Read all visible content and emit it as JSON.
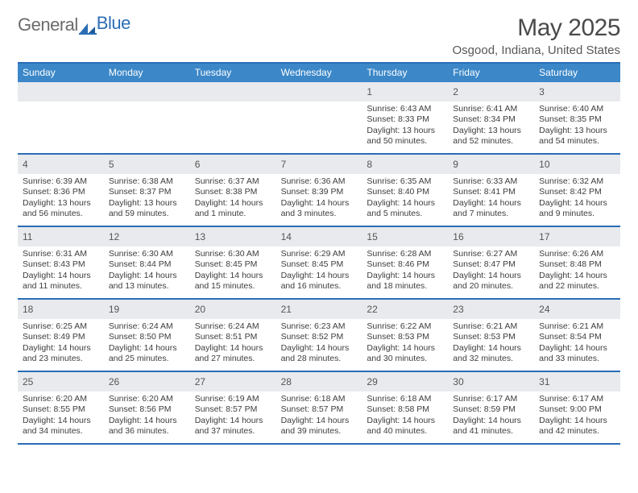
{
  "brand": {
    "part1": "General",
    "part2": "Blue"
  },
  "colors": {
    "accent": "#2a6db5",
    "header_bg": "#3b87c8",
    "header_fg": "#ffffff",
    "daynum_bg": "#e8eaed",
    "text": "#3d3d3d"
  },
  "title": "May 2025",
  "location": "Osgood, Indiana, United States",
  "dow": [
    "Sunday",
    "Monday",
    "Tuesday",
    "Wednesday",
    "Thursday",
    "Friday",
    "Saturday"
  ],
  "weeks": [
    [
      {
        "n": "",
        "sr": "",
        "ss": "",
        "dl": ""
      },
      {
        "n": "",
        "sr": "",
        "ss": "",
        "dl": ""
      },
      {
        "n": "",
        "sr": "",
        "ss": "",
        "dl": ""
      },
      {
        "n": "",
        "sr": "",
        "ss": "",
        "dl": ""
      },
      {
        "n": "1",
        "sr": "Sunrise: 6:43 AM",
        "ss": "Sunset: 8:33 PM",
        "dl": "Daylight: 13 hours and 50 minutes."
      },
      {
        "n": "2",
        "sr": "Sunrise: 6:41 AM",
        "ss": "Sunset: 8:34 PM",
        "dl": "Daylight: 13 hours and 52 minutes."
      },
      {
        "n": "3",
        "sr": "Sunrise: 6:40 AM",
        "ss": "Sunset: 8:35 PM",
        "dl": "Daylight: 13 hours and 54 minutes."
      }
    ],
    [
      {
        "n": "4",
        "sr": "Sunrise: 6:39 AM",
        "ss": "Sunset: 8:36 PM",
        "dl": "Daylight: 13 hours and 56 minutes."
      },
      {
        "n": "5",
        "sr": "Sunrise: 6:38 AM",
        "ss": "Sunset: 8:37 PM",
        "dl": "Daylight: 13 hours and 59 minutes."
      },
      {
        "n": "6",
        "sr": "Sunrise: 6:37 AM",
        "ss": "Sunset: 8:38 PM",
        "dl": "Daylight: 14 hours and 1 minute."
      },
      {
        "n": "7",
        "sr": "Sunrise: 6:36 AM",
        "ss": "Sunset: 8:39 PM",
        "dl": "Daylight: 14 hours and 3 minutes."
      },
      {
        "n": "8",
        "sr": "Sunrise: 6:35 AM",
        "ss": "Sunset: 8:40 PM",
        "dl": "Daylight: 14 hours and 5 minutes."
      },
      {
        "n": "9",
        "sr": "Sunrise: 6:33 AM",
        "ss": "Sunset: 8:41 PM",
        "dl": "Daylight: 14 hours and 7 minutes."
      },
      {
        "n": "10",
        "sr": "Sunrise: 6:32 AM",
        "ss": "Sunset: 8:42 PM",
        "dl": "Daylight: 14 hours and 9 minutes."
      }
    ],
    [
      {
        "n": "11",
        "sr": "Sunrise: 6:31 AM",
        "ss": "Sunset: 8:43 PM",
        "dl": "Daylight: 14 hours and 11 minutes."
      },
      {
        "n": "12",
        "sr": "Sunrise: 6:30 AM",
        "ss": "Sunset: 8:44 PM",
        "dl": "Daylight: 14 hours and 13 minutes."
      },
      {
        "n": "13",
        "sr": "Sunrise: 6:30 AM",
        "ss": "Sunset: 8:45 PM",
        "dl": "Daylight: 14 hours and 15 minutes."
      },
      {
        "n": "14",
        "sr": "Sunrise: 6:29 AM",
        "ss": "Sunset: 8:45 PM",
        "dl": "Daylight: 14 hours and 16 minutes."
      },
      {
        "n": "15",
        "sr": "Sunrise: 6:28 AM",
        "ss": "Sunset: 8:46 PM",
        "dl": "Daylight: 14 hours and 18 minutes."
      },
      {
        "n": "16",
        "sr": "Sunrise: 6:27 AM",
        "ss": "Sunset: 8:47 PM",
        "dl": "Daylight: 14 hours and 20 minutes."
      },
      {
        "n": "17",
        "sr": "Sunrise: 6:26 AM",
        "ss": "Sunset: 8:48 PM",
        "dl": "Daylight: 14 hours and 22 minutes."
      }
    ],
    [
      {
        "n": "18",
        "sr": "Sunrise: 6:25 AM",
        "ss": "Sunset: 8:49 PM",
        "dl": "Daylight: 14 hours and 23 minutes."
      },
      {
        "n": "19",
        "sr": "Sunrise: 6:24 AM",
        "ss": "Sunset: 8:50 PM",
        "dl": "Daylight: 14 hours and 25 minutes."
      },
      {
        "n": "20",
        "sr": "Sunrise: 6:24 AM",
        "ss": "Sunset: 8:51 PM",
        "dl": "Daylight: 14 hours and 27 minutes."
      },
      {
        "n": "21",
        "sr": "Sunrise: 6:23 AM",
        "ss": "Sunset: 8:52 PM",
        "dl": "Daylight: 14 hours and 28 minutes."
      },
      {
        "n": "22",
        "sr": "Sunrise: 6:22 AM",
        "ss": "Sunset: 8:53 PM",
        "dl": "Daylight: 14 hours and 30 minutes."
      },
      {
        "n": "23",
        "sr": "Sunrise: 6:21 AM",
        "ss": "Sunset: 8:53 PM",
        "dl": "Daylight: 14 hours and 32 minutes."
      },
      {
        "n": "24",
        "sr": "Sunrise: 6:21 AM",
        "ss": "Sunset: 8:54 PM",
        "dl": "Daylight: 14 hours and 33 minutes."
      }
    ],
    [
      {
        "n": "25",
        "sr": "Sunrise: 6:20 AM",
        "ss": "Sunset: 8:55 PM",
        "dl": "Daylight: 14 hours and 34 minutes."
      },
      {
        "n": "26",
        "sr": "Sunrise: 6:20 AM",
        "ss": "Sunset: 8:56 PM",
        "dl": "Daylight: 14 hours and 36 minutes."
      },
      {
        "n": "27",
        "sr": "Sunrise: 6:19 AM",
        "ss": "Sunset: 8:57 PM",
        "dl": "Daylight: 14 hours and 37 minutes."
      },
      {
        "n": "28",
        "sr": "Sunrise: 6:18 AM",
        "ss": "Sunset: 8:57 PM",
        "dl": "Daylight: 14 hours and 39 minutes."
      },
      {
        "n": "29",
        "sr": "Sunrise: 6:18 AM",
        "ss": "Sunset: 8:58 PM",
        "dl": "Daylight: 14 hours and 40 minutes."
      },
      {
        "n": "30",
        "sr": "Sunrise: 6:17 AM",
        "ss": "Sunset: 8:59 PM",
        "dl": "Daylight: 14 hours and 41 minutes."
      },
      {
        "n": "31",
        "sr": "Sunrise: 6:17 AM",
        "ss": "Sunset: 9:00 PM",
        "dl": "Daylight: 14 hours and 42 minutes."
      }
    ]
  ]
}
